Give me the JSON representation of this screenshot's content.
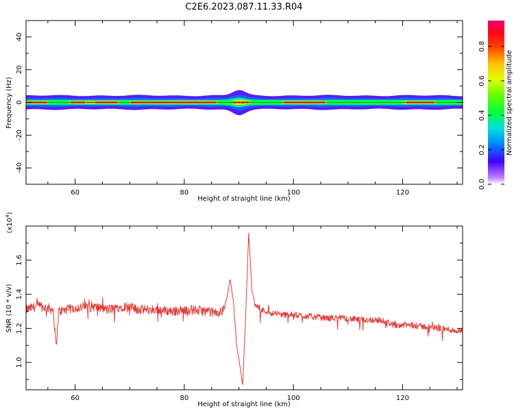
{
  "figure_title": "C2E6.2023.087.11.33.R04",
  "chart_data": [
    {
      "type": "heatmap",
      "xlabel": "Height of straight line (km)",
      "ylabel": "Frequency (Hz)",
      "xlim": [
        51,
        131
      ],
      "ylim": [
        -50,
        50
      ],
      "x_ticks": [
        60,
        80,
        100,
        120
      ],
      "y_ticks": [
        -40,
        -20,
        0,
        20,
        40
      ],
      "colorbar": {
        "label": "Normalized spectral amplitude",
        "range": [
          0.0,
          0.95
        ],
        "ticks": [
          0.0,
          0.2,
          0.4,
          0.6,
          0.8
        ]
      },
      "ridge": {
        "frequency_hz": 0,
        "bands": [
          {
            "x": [
              51,
              131
            ],
            "half_width_hz": 4.2,
            "level": 0.12
          },
          {
            "x": [
              51,
              131
            ],
            "half_width_hz": 2.6,
            "level": 0.22
          },
          {
            "x": [
              51,
              131
            ],
            "half_width_hz": 1.6,
            "level": 0.38
          },
          {
            "x": [
              51,
              131
            ],
            "half_width_hz": 0.9,
            "level": 0.62
          },
          {
            "x": [
              51,
              131
            ],
            "half_width_hz": 0.35,
            "level": 0.92
          }
        ],
        "bright_segments": [
          [
            51,
            55
          ],
          [
            59,
            62
          ],
          [
            63.5,
            68
          ],
          [
            70,
            86
          ],
          [
            89.5,
            90.5
          ],
          [
            91,
            92
          ],
          [
            98,
            106
          ],
          [
            120.5,
            126
          ]
        ],
        "green_segments": [
          [
            55,
            59
          ],
          [
            68,
            70
          ],
          [
            86,
            89
          ],
          [
            92,
            98
          ],
          [
            106,
            120
          ],
          [
            126,
            131
          ]
        ],
        "disturbance_center": 90
      }
    },
    {
      "type": "line",
      "xlabel": "Height of straight line (km)",
      "ylabel": "SNR (10 * v/v)",
      "y_multiplier": "(x10^4)",
      "xlim": [
        51,
        131
      ],
      "ylim": [
        0.84,
        1.8
      ],
      "x_ticks": [
        60,
        80,
        100,
        120
      ],
      "y_ticks": [
        1.0,
        1.2,
        1.4,
        1.6
      ],
      "series": [
        {
          "color": "#e53935",
          "x": [
            51,
            53,
            55,
            56,
            56.5,
            57,
            60,
            63,
            66,
            69,
            72,
            75,
            78,
            81,
            84,
            86,
            87,
            87.8,
            88.4,
            89,
            89.6,
            90.2,
            90.7,
            91.2,
            91.8,
            92.4,
            93,
            94,
            96,
            98,
            100,
            103,
            106,
            109,
            112,
            115,
            117,
            118.5,
            121,
            124,
            127,
            129,
            131
          ],
          "values": [
            1.31,
            1.33,
            1.32,
            1.31,
            1.09,
            1.3,
            1.32,
            1.33,
            1.31,
            1.33,
            1.31,
            1.31,
            1.3,
            1.31,
            1.3,
            1.29,
            1.3,
            1.38,
            1.49,
            1.36,
            1.1,
            0.98,
            0.86,
            1.24,
            1.76,
            1.42,
            1.34,
            1.31,
            1.29,
            1.28,
            1.28,
            1.27,
            1.26,
            1.26,
            1.25,
            1.25,
            1.24,
            1.22,
            1.22,
            1.21,
            1.2,
            1.19,
            1.18
          ]
        }
      ]
    }
  ]
}
